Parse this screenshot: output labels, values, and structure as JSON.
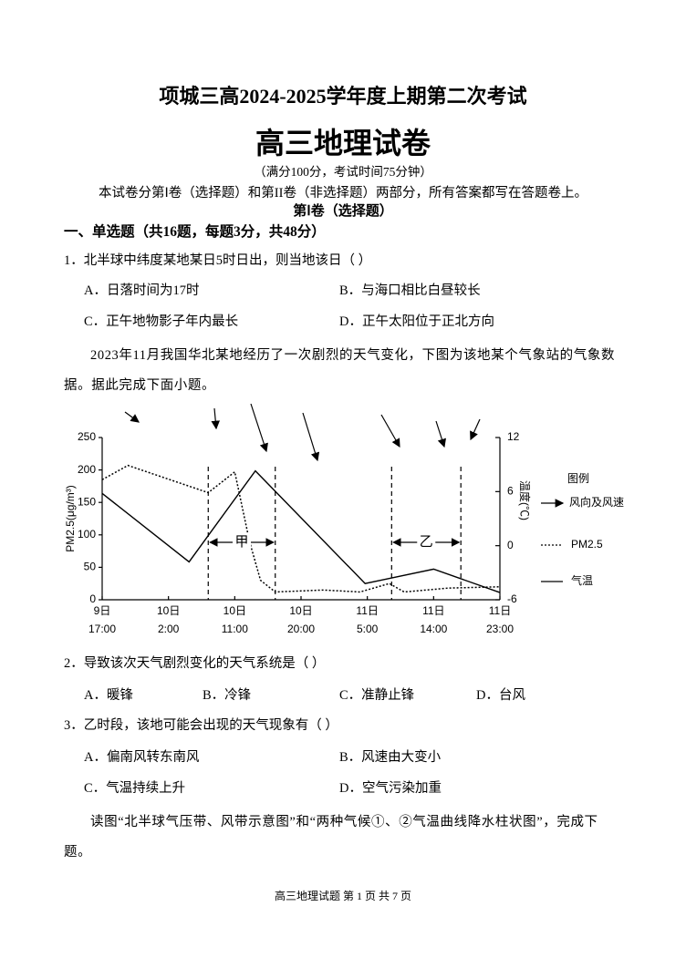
{
  "header": {
    "school_title": "项城三高2024-2025学年度上期第二次考试",
    "title": "高三地理试卷",
    "subtitle": "（满分100分，考试时间75分钟）",
    "instructions": "本试卷分第Ⅰ卷（选择题）和第II卷（非选择题）两部分，所有答案都写在答题卷上。",
    "volume_title": "第Ⅰ卷（选择题）",
    "section_title": "一、单选题（共16题，每题3分，共48分）"
  },
  "questions": [
    {
      "stem": "1．北半球中纬度某地某日5时日出，则当地该日（ ）",
      "options": [
        "A．日落时间为17时",
        "B．与海口相比白昼较长",
        "C．正午地物影子年内最长",
        "D．正午太阳位于正北方向"
      ]
    },
    {
      "stem": "2．导致该次天气剧烈变化的天气系统是（ ）",
      "options": [
        "A．暖锋",
        "B．冷锋",
        "C．准静止锋",
        "D．台风"
      ]
    },
    {
      "stem": "3．乙时段，该地可能会出现的天气现象有（ ）",
      "options": [
        "A．偏南风转东南风",
        "B．风速由大变小",
        "C．气温持续上升",
        "D．空气污染加重"
      ]
    }
  ],
  "passages": [
    "2023年11月我国华北某地经历了一次剧烈的天气变化，下图为该地某个气象站的气象数据。据此完成下面小题。",
    "读图“北半球气压带、风带示意图”和“两种气候①、②气温曲线降水柱状图”，完成下题。"
  ],
  "chart_data": {
    "type": "line",
    "y_label": "PM2.5(μg/m³)",
    "y2_label": "温度(℃)",
    "xlim": [
      0,
      54
    ],
    "xticks": [
      {
        "value": 0,
        "label": [
          "9日",
          "17:00"
        ]
      },
      {
        "value": 9,
        "label": [
          "10日",
          "2:00"
        ]
      },
      {
        "value": 18,
        "label": [
          "10日",
          "11:00"
        ]
      },
      {
        "value": 27,
        "label": [
          "10日",
          "20:00"
        ]
      },
      {
        "value": 36,
        "label": [
          "11日",
          "5:00"
        ]
      },
      {
        "value": 45,
        "label": [
          "11日",
          "14:00"
        ]
      },
      {
        "value": 54,
        "label": [
          "11日",
          "23:00"
        ]
      }
    ],
    "ylim": [
      0,
      250
    ],
    "yticks": [
      0,
      50,
      100,
      150,
      200,
      250
    ],
    "y2lim": [
      -6,
      12
    ],
    "y2ticks": [
      -6,
      0,
      6,
      12
    ],
    "series": [
      {
        "name": "PM2.5",
        "color": "#000",
        "style": "dotted",
        "x": [
          0,
          3.5,
          14.4,
          18,
          20,
          21.5,
          23.5,
          30,
          35,
          39,
          41,
          47,
          54
        ],
        "values": [
          185,
          207,
          165,
          197,
          90,
          30,
          12,
          15,
          12,
          25,
          12,
          18,
          20
        ]
      },
      {
        "name": "气温",
        "color": "#000",
        "style": "solid",
        "axis": "y2",
        "x": [
          0,
          11.8,
          20.8,
          35.7,
          45,
          54
        ],
        "values": [
          5.8,
          -1.8,
          8.3,
          -4.2,
          -2.6,
          -5.2
        ]
      }
    ],
    "annotations": [
      {
        "text": "甲",
        "x": [
          14.4,
          23.5
        ]
      },
      {
        "text": "乙",
        "x": [
          39.3,
          48.7
        ]
      }
    ],
    "legend_title": "图例",
    "legend_wind": "风向及风速"
  },
  "footer": "高三地理试题 第 1 页 共 7 页"
}
